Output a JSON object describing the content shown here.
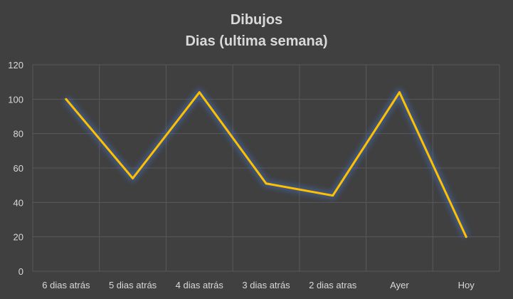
{
  "chart_data": {
    "type": "line",
    "title": "Dibujos",
    "subtitle": "Dias (ultima semana)",
    "xlabel": "",
    "ylabel": "",
    "categories": [
      "6 dias atrás",
      "5 dias atrás",
      "4 dias atrás",
      "3 dias atrás",
      "2 dias atras",
      "Ayer",
      "Hoy"
    ],
    "series": [
      {
        "values": [
          100,
          54,
          104,
          51,
          44,
          104,
          20
        ]
      }
    ],
    "yticks": [
      0,
      20,
      40,
      60,
      80,
      100,
      120
    ],
    "ylim": [
      0,
      120
    ],
    "grid": true,
    "legend": "none",
    "colors": {
      "background": "#404040",
      "line": "#ffc000",
      "glow": "#4472c4",
      "grid": "#595959",
      "text": "#d9d9d9"
    }
  }
}
